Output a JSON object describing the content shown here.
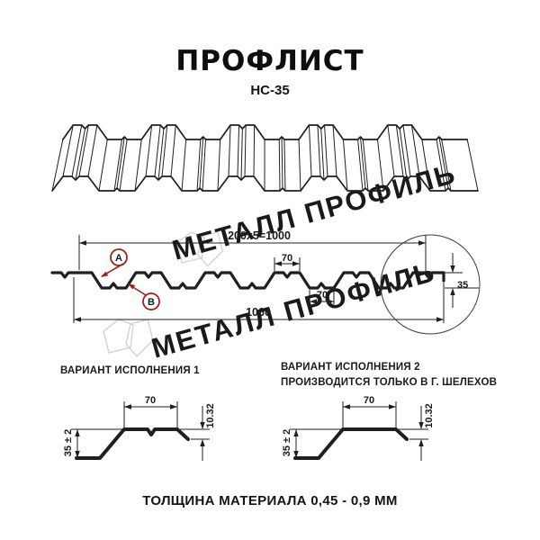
{
  "title": "ПРОФЛИСТ",
  "subtitle": "НС-35",
  "watermark": {
    "text": "МЕТАЛЛ ПРОФИЛЬ"
  },
  "cross_section": {
    "dim_width_top": "200x5=1000",
    "dim_crest_width": "70",
    "dim_valley_width": "70",
    "dim_total_width": "1060",
    "dim_height": "35",
    "label_a": "А",
    "label_b": "В"
  },
  "variant1": {
    "header": "ВАРИАНТ ИСПОЛНЕНИЯ 1",
    "dim_top_width": "70",
    "dim_height": "35 ± 2",
    "dim_edge_drop": "10.32"
  },
  "variant2": {
    "header_line1": "ВАРИАНТ ИСПОЛНЕНИЯ 2",
    "header_line2": "ПРОИЗВОДИТСЯ ТОЛЬКО В Г. ШЕЛЕХОВ",
    "dim_top_width": "70",
    "dim_height": "35 ± 2",
    "dim_edge_drop": "10.32"
  },
  "footer": "ТОЛЩИНА МАТЕРИАЛА 0,45 - 0,9 ММ",
  "colors": {
    "line": "#1f1f1f",
    "accent_red": "#a32019",
    "watermark": "#c9c9c9",
    "background": "#ffffff"
  }
}
